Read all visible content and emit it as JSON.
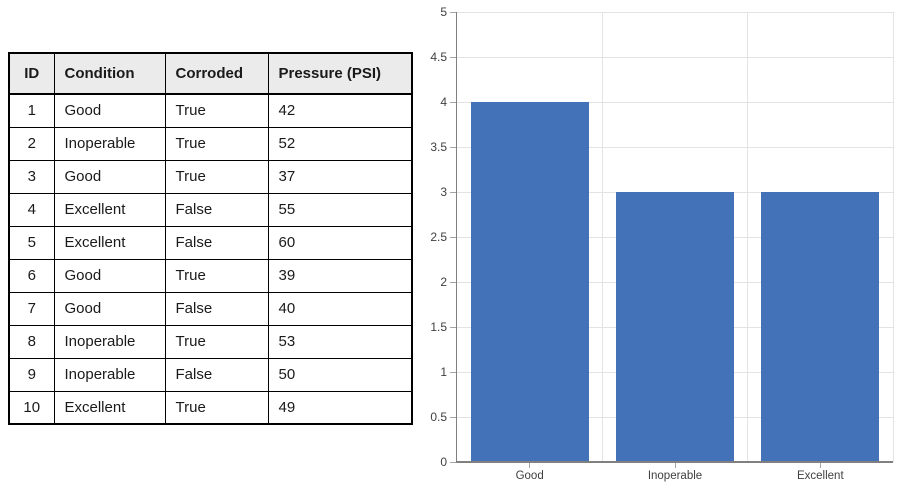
{
  "table": {
    "columns": [
      "ID",
      "Condition",
      "Corroded",
      "Pressure (PSI)"
    ],
    "rows": [
      [
        "1",
        "Good",
        "True",
        "42"
      ],
      [
        "2",
        "Inoperable",
        "True",
        "52"
      ],
      [
        "3",
        "Good",
        "True",
        "37"
      ],
      [
        "4",
        "Excellent",
        "False",
        "55"
      ],
      [
        "5",
        "Excellent",
        "False",
        "60"
      ],
      [
        "6",
        "Good",
        "True",
        "39"
      ],
      [
        "7",
        "Good",
        "False",
        "40"
      ],
      [
        "8",
        "Inoperable",
        "True",
        "53"
      ],
      [
        "9",
        "Inoperable",
        "False",
        "50"
      ],
      [
        "10",
        "Excellent",
        "True",
        "49"
      ]
    ],
    "header_bg": "#EBEBEB",
    "border_color": "#000000"
  },
  "chart_data": {
    "type": "bar",
    "categories": [
      "Good",
      "Inoperable",
      "Excellent"
    ],
    "values": [
      4,
      3,
      3
    ],
    "title": "",
    "xlabel": "",
    "ylabel": "",
    "ylim": [
      0,
      5
    ],
    "ytick_step": 0.5,
    "yticks": [
      "0",
      "0.5",
      "1",
      "1.5",
      "2",
      "2.5",
      "3",
      "3.5",
      "4",
      "4.5",
      "5"
    ],
    "grid": true,
    "legend": false,
    "bar_color": "#4472B8",
    "gridline_color": "#E3E3E3",
    "tick_color": "#A6A6A6",
    "axis_color": "#808080",
    "tick_label_color": "#404040"
  }
}
